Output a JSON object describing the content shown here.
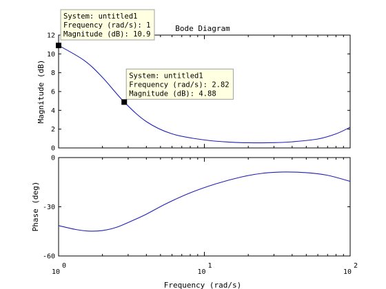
{
  "chart_data": {
    "type": "line",
    "title": "Bode Diagram",
    "xlabel": "Frequency  (rad/s)",
    "xscale": "log",
    "xlim": [
      1,
      100
    ],
    "x_ticks": [
      {
        "base": "10",
        "exp": "0"
      },
      {
        "base": "10",
        "exp": "1"
      },
      {
        "base": "10",
        "exp": "2"
      }
    ],
    "magnitude": {
      "ylabel": "Magnitude (dB)",
      "ylim": [
        0,
        12
      ],
      "yticks": [
        "0",
        "2",
        "4",
        "6",
        "8",
        "10",
        "12"
      ],
      "x": [
        1,
        1.5,
        2,
        2.82,
        4,
        6,
        10,
        15,
        20,
        30,
        40,
        60,
        80,
        100
      ],
      "y": [
        10.9,
        9.3,
        7.5,
        4.88,
        2.8,
        1.5,
        0.85,
        0.62,
        0.55,
        0.56,
        0.65,
        0.95,
        1.5,
        2.2
      ]
    },
    "phase": {
      "ylabel": "Phase (deg)",
      "ylim": [
        -60,
        0
      ],
      "yticks": [
        "-60",
        "-30",
        "0"
      ],
      "x": [
        1,
        1.3,
        1.6,
        2,
        2.5,
        3.2,
        4,
        5.5,
        8,
        12,
        18,
        25,
        35,
        50,
        70,
        100
      ],
      "y": [
        -41.5,
        -43.8,
        -44.8,
        -44.5,
        -42.5,
        -38.5,
        -34.5,
        -28,
        -21.5,
        -16,
        -11.8,
        -9.6,
        -8.8,
        -9.2,
        -10.8,
        -14.5
      ]
    },
    "datatips": [
      {
        "system": "System: untitled1",
        "frequency": "Frequency (rad/s): 1",
        "magnitude": "Magnitude (dB): 10.9",
        "x": 1,
        "y": 10.9
      },
      {
        "system": "System: untitled1",
        "frequency": "Frequency (rad/s): 2.82",
        "magnitude": "Magnitude (dB): 4.88",
        "x": 2.82,
        "y": 4.88
      }
    ],
    "colors": {
      "line": "#1f1fb4",
      "tip_background": "#ffffe1"
    },
    "grid": false
  }
}
